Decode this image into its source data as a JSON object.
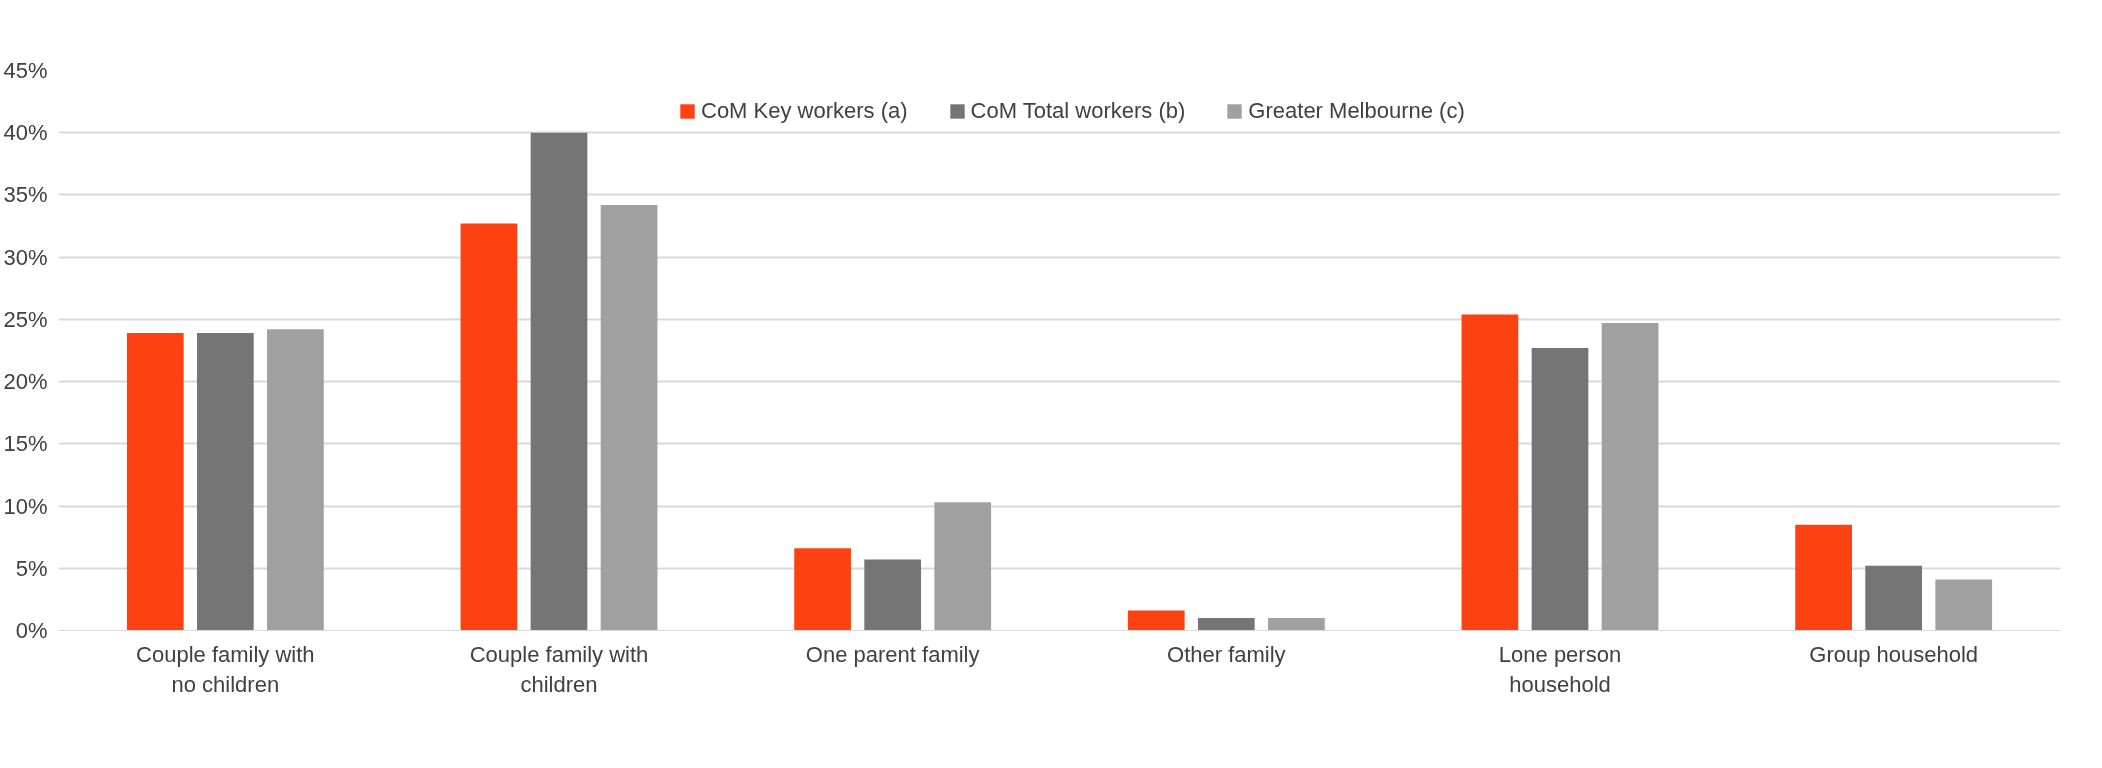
{
  "chart_data": {
    "type": "bar",
    "categories": [
      "Couple family with no children",
      "Couple family with children",
      "One parent family",
      "Other family",
      "Lone person household",
      "Group household"
    ],
    "series": [
      {
        "name": "CoM Key workers (a)",
        "color": "#fc4211",
        "values": [
          23.9,
          32.7,
          6.6,
          1.6,
          25.4,
          8.5
        ]
      },
      {
        "name": "CoM Total workers (b)",
        "color": "#757575",
        "values": [
          23.9,
          40.0,
          5.7,
          1.0,
          22.7,
          5.2
        ]
      },
      {
        "name": "Greater Melbourne (c)",
        "color": "#a0a0a0",
        "values": [
          24.2,
          34.2,
          10.3,
          1.0,
          24.7,
          4.1
        ]
      }
    ],
    "ylim": [
      0,
      45
    ],
    "yticks": [
      {
        "value": 0,
        "label": "0%"
      },
      {
        "value": 5,
        "label": "5%"
      },
      {
        "value": 10,
        "label": "10%"
      },
      {
        "value": 15,
        "label": "15%"
      },
      {
        "value": 20,
        "label": "20%"
      },
      {
        "value": 25,
        "label": "25%"
      },
      {
        "value": 30,
        "label": "30%"
      },
      {
        "value": 35,
        "label": "35%"
      },
      {
        "value": 40,
        "label": "40%"
      },
      {
        "value": 45,
        "label": "45%"
      }
    ],
    "grid": "y",
    "legend": "top"
  }
}
